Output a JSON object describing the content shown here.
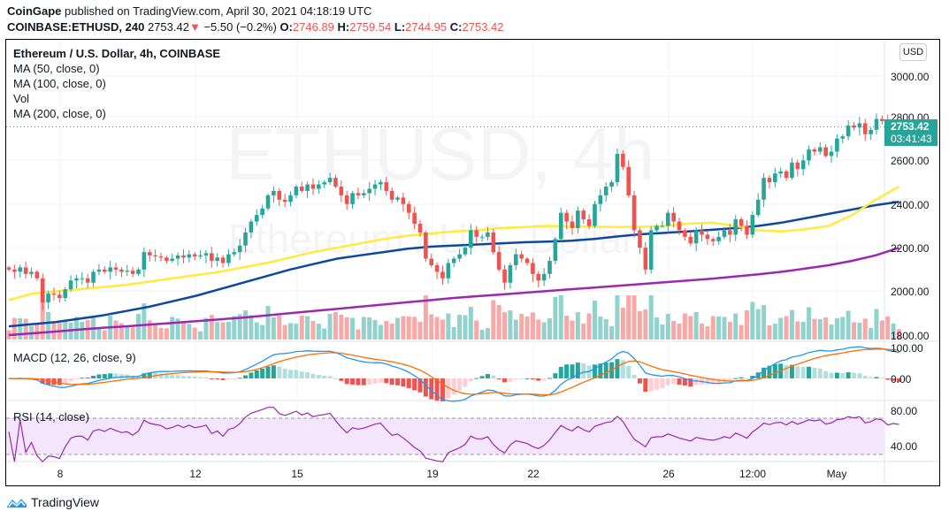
{
  "header": {
    "publisher": "CoinGape",
    "published_text": "published on TradingView.com, April 30, 2021 04:18:19 UTC",
    "symbol": "COINBASE:ETHUSD, 240",
    "last": "2753.42",
    "change_icon": "down-triangle-icon",
    "change": "−5.50 (−0.2%)",
    "o_label": "O:",
    "o": "2746.89",
    "h_label": "H:",
    "h": "2759.54",
    "l_label": "L:",
    "l": "2744.95",
    "c_label": "C:",
    "c": "2753.42"
  },
  "legend": {
    "title": "Ethereum / U.S. Dollar, 4h, COINBASE",
    "items": [
      "MA (50, close, 0)",
      "MA (100, close, 0)",
      "Vol",
      "MA (200, close, 0)"
    ]
  },
  "watermark": {
    "symbol": "ETHUSD, 4h",
    "name": "Ethereum / U.S. Dollar"
  },
  "currency_button": "USD",
  "price_tag": {
    "price": "2753.42",
    "countdown": "03:41:43"
  },
  "macd_label": "MACD (12, 26, close, 9)",
  "rsi_label": "RSI (14, close)",
  "footer": {
    "brand": "TradingView",
    "icon": "tradingview-logo-icon"
  },
  "colors": {
    "up": "#26a69a",
    "down": "#ef5350",
    "vol_up": "#92d2cc",
    "vol_down": "#f7a9a7",
    "ma50": "#ffeb3b",
    "ma100": "#0d47a1",
    "ma200": "#9c27b0",
    "macd": "#2196f3",
    "signal": "#ff6d00",
    "rsi": "#9c27b0",
    "rsi_band": "#f3e5fc"
  },
  "chart_data": {
    "type": "candlestick",
    "title": "Ethereum / U.S. Dollar, 4h, COINBASE",
    "interval": "4h",
    "x_start": "2021-04-06 12:00",
    "x_ticks": [
      "8",
      "12",
      "15",
      "19",
      "22",
      "26",
      "12:00",
      "May"
    ],
    "price_axis": {
      "ticks": [
        "3000.00",
        "2800.00",
        "2600.00",
        "2400.00",
        "2200.00",
        "2000.00",
        "1800.00"
      ],
      "range": [
        1790,
        3100
      ]
    },
    "macd_axis": {
      "ticks": [
        "100.00",
        "0.00"
      ]
    },
    "rsi_axis": {
      "ticks": [
        "80.00",
        "40.00"
      ],
      "band": [
        30,
        70
      ]
    },
    "last_price": 2753.42,
    "closes": [
      2100,
      2090,
      2110,
      2080,
      2090,
      2060,
      1950,
      1990,
      1985,
      1970,
      2010,
      2050,
      2060,
      2060,
      2040,
      2090,
      2100,
      2090,
      2110,
      2100,
      2090,
      2095,
      2080,
      2100,
      2180,
      2165,
      2160,
      2155,
      2140,
      2150,
      2165,
      2155,
      2170,
      2160,
      2165,
      2175,
      2140,
      2155,
      2130,
      2170,
      2180,
      2210,
      2270,
      2320,
      2350,
      2380,
      2440,
      2460,
      2420,
      2410,
      2440,
      2480,
      2460,
      2490,
      2470,
      2490,
      2500,
      2520,
      2480,
      2440,
      2400,
      2450,
      2440,
      2450,
      2470,
      2490,
      2500,
      2460,
      2420,
      2430,
      2400,
      2360,
      2310,
      2270,
      2150,
      2120,
      2090,
      2060,
      2130,
      2150,
      2170,
      2200,
      2280,
      2250,
      2250,
      2270,
      2180,
      2100,
      2040,
      2120,
      2170,
      2150,
      2130,
      2080,
      2050,
      2080,
      2140,
      2240,
      2360,
      2320,
      2290,
      2370,
      2330,
      2300,
      2400,
      2440,
      2480,
      2500,
      2630,
      2570,
      2440,
      2280,
      2200,
      2100,
      2280,
      2300,
      2300,
      2360,
      2320,
      2280,
      2250,
      2220,
      2280,
      2260,
      2240,
      2230,
      2250,
      2280,
      2260,
      2330,
      2300,
      2260,
      2350,
      2420,
      2520,
      2500,
      2540,
      2550,
      2520,
      2590,
      2560,
      2600,
      2650,
      2640,
      2660,
      2620,
      2640,
      2700,
      2710,
      2760,
      2750,
      2770,
      2720,
      2740,
      2790,
      2780,
      2740,
      2760,
      2753
    ],
    "ma50": [
      1960,
      1990,
      2000,
      2010,
      2020,
      2030,
      2045,
      2060,
      2075,
      2090,
      2110,
      2130,
      2155,
      2180,
      2200,
      2220,
      2240,
      2255,
      2265,
      2275,
      2280,
      2290,
      2295,
      2300,
      2298,
      2296,
      2295,
      2296,
      2300,
      2310,
      2315,
      2300,
      2280,
      2275,
      2285,
      2300,
      2350,
      2420,
      2480
    ],
    "ma100": [
      1840,
      1850,
      1860,
      1875,
      1890,
      1910,
      1930,
      1955,
      1980,
      2010,
      2040,
      2070,
      2100,
      2125,
      2150,
      2165,
      2180,
      2195,
      2205,
      2210,
      2215,
      2220,
      2225,
      2228,
      2232,
      2240,
      2252,
      2262,
      2268,
      2275,
      2282,
      2290,
      2300,
      2315,
      2335,
      2355,
      2375,
      2395,
      2410
    ],
    "ma200": [
      1800,
      1808,
      1816,
      1825,
      1833,
      1840,
      1848,
      1856,
      1864,
      1872,
      1880,
      1890,
      1900,
      1910,
      1920,
      1930,
      1940,
      1950,
      1960,
      1970,
      1978,
      1986,
      1994,
      2002,
      2010,
      2018,
      2026,
      2034,
      2042,
      2050,
      2058,
      2068,
      2078,
      2090,
      2105,
      2120,
      2140,
      2165,
      2200
    ]
  }
}
